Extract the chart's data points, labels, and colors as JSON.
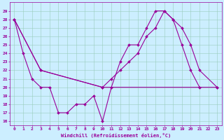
{
  "title": "",
  "xlabel": "Windchill (Refroidissement éolien,°C)",
  "ylabel": "",
  "bg_color": "#cceeff",
  "line_color": "#990099",
  "xlim": [
    -0.5,
    23.5
  ],
  "ylim": [
    15.5,
    30.0
  ],
  "xticks": [
    0,
    1,
    2,
    3,
    4,
    5,
    6,
    7,
    8,
    9,
    10,
    11,
    12,
    13,
    14,
    15,
    16,
    17,
    18,
    19,
    20,
    21,
    22,
    23
  ],
  "yticks": [
    16,
    17,
    18,
    19,
    20,
    21,
    22,
    23,
    24,
    25,
    26,
    27,
    28,
    29
  ],
  "line1_x": [
    0,
    1,
    2,
    3,
    4,
    5,
    6,
    7,
    8,
    9,
    10,
    11,
    12,
    13,
    14,
    15,
    16,
    17,
    18,
    19,
    20,
    21
  ],
  "line1_y": [
    28,
    24,
    21,
    20,
    20,
    17,
    17,
    18,
    18,
    19,
    16,
    20,
    23,
    25,
    25,
    27,
    29,
    29,
    28,
    25,
    22,
    20
  ],
  "line2_x": [
    0,
    3,
    10,
    23
  ],
  "line2_y": [
    28,
    22,
    20,
    20
  ],
  "line3_x": [
    0,
    3,
    10,
    11,
    12,
    13,
    14,
    15,
    16,
    17,
    18,
    19,
    20,
    21,
    23
  ],
  "line3_y": [
    28,
    22,
    20,
    21,
    22,
    23,
    24,
    26,
    27,
    29,
    28,
    27,
    25,
    22,
    20
  ],
  "tick_fontsize": 4.5,
  "xlabel_fontsize": 5.0,
  "marker_size": 2.0,
  "line_width": 0.8
}
